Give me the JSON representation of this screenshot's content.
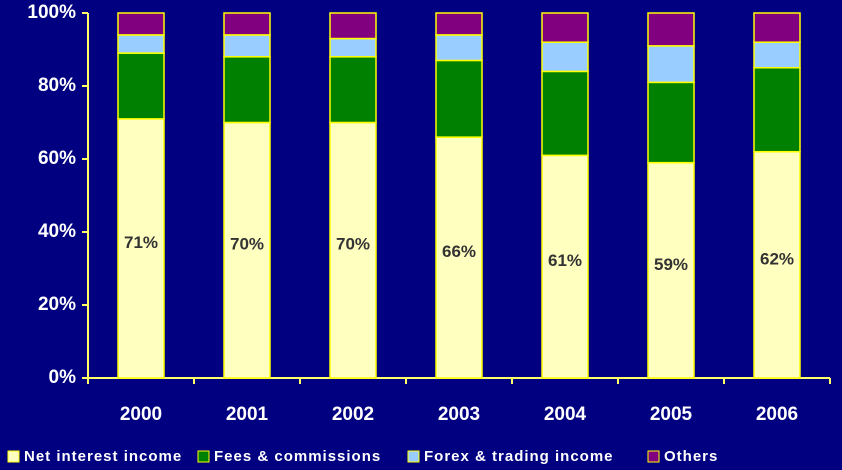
{
  "chart_data": {
    "type": "stacked_bar_100",
    "categories": [
      "2000",
      "2001",
      "2002",
      "2003",
      "2004",
      "2005",
      "2006"
    ],
    "series": [
      {
        "name": "Net interest income",
        "color": "#ffffc0",
        "values": [
          71,
          70,
          70,
          66,
          61,
          59,
          62
        ],
        "value_labels": [
          "71%",
          "70%",
          "70%",
          "66%",
          "61%",
          "59%",
          "62%"
        ]
      },
      {
        "name": "Fees & commissions",
        "color": "#008000",
        "values": [
          18,
          18,
          18,
          21,
          23,
          22,
          23
        ]
      },
      {
        "name": "Forex & trading income",
        "color": "#99ccff",
        "values": [
          5,
          6,
          5,
          7,
          8,
          10,
          7
        ]
      },
      {
        "name": "Others",
        "color": "#800080",
        "values": [
          6,
          6,
          7,
          6,
          8,
          9,
          8
        ]
      }
    ],
    "ylim": [
      0,
      100
    ],
    "yticks": [
      {
        "value": 0,
        "label": "0%"
      },
      {
        "value": 20,
        "label": "20%"
      },
      {
        "value": 40,
        "label": "40%"
      },
      {
        "value": 60,
        "label": "60%"
      },
      {
        "value": 80,
        "label": "80%"
      },
      {
        "value": 100,
        "label": "100%"
      }
    ],
    "legend": "bottom"
  }
}
